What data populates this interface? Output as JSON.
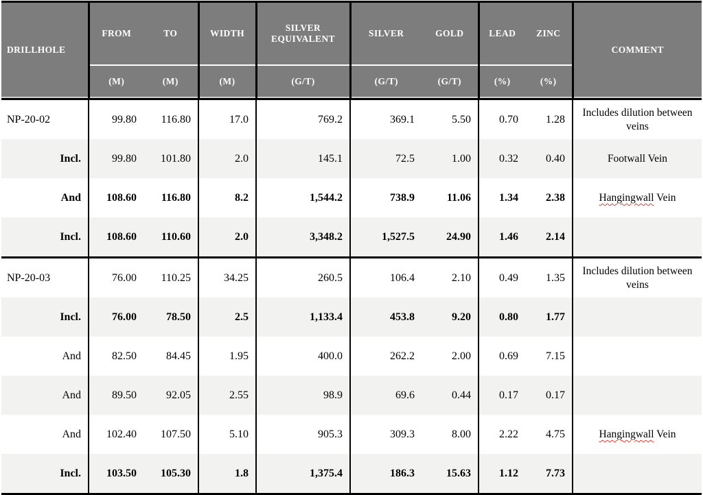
{
  "table": {
    "colors": {
      "header_bg": "#7d7d7d",
      "header_text": "#ffffff",
      "alt_row_bg": "#f2f2f1",
      "header_gap": "#cfcfcf",
      "border": "#000000",
      "spellcheck_squiggle": "#e03c2d"
    },
    "header": {
      "drillhole": "DRILLHOLE",
      "from": "FROM",
      "to": "TO",
      "width": "WIDTH",
      "silver_equivalent": "SILVER EQUIVALENT",
      "silver": "SILVER",
      "gold": "GOLD",
      "lead": "LEAD",
      "zinc": "ZINC",
      "comment": "COMMENT",
      "units": {
        "from": "(M)",
        "to": "(M)",
        "width": "(M)",
        "silver_equivalent": "(G/T)",
        "silver": "(G/T)",
        "gold": "(G/T)",
        "lead": "(%)",
        "zinc": "(%)"
      }
    },
    "rows": [
      {
        "label": "NP-20-02",
        "label_align": "left",
        "bold_label": false,
        "bold_values": false,
        "from": "99.80",
        "to": "116.80",
        "width": "17.0",
        "silver_equivalent": "769.2",
        "silver": "369.1",
        "gold": "5.50",
        "lead": "0.70",
        "zinc": "1.28",
        "comment": "Includes dilution between veins",
        "squiggle_word": "",
        "group_end": false
      },
      {
        "label": "Incl.",
        "label_align": "right",
        "bold_label": true,
        "bold_values": false,
        "from": "99.80",
        "to": "101.80",
        "width": "2.0",
        "silver_equivalent": "145.1",
        "silver": "72.5",
        "gold": "1.00",
        "lead": "0.32",
        "zinc": "0.40",
        "comment": "Footwall Vein",
        "squiggle_word": "",
        "group_end": false
      },
      {
        "label": "And",
        "label_align": "right",
        "bold_label": true,
        "bold_values": true,
        "from": "108.60",
        "to": "116.80",
        "width": "8.2",
        "silver_equivalent": "1,544.2",
        "silver": "738.9",
        "gold": "11.06",
        "lead": "1.34",
        "zinc": "2.38",
        "comment": "Hangingwall Vein",
        "squiggle_word": "Hangingwall",
        "group_end": false
      },
      {
        "label": "Incl.",
        "label_align": "right",
        "bold_label": true,
        "bold_values": true,
        "from": "108.60",
        "to": "110.60",
        "width": "2.0",
        "silver_equivalent": "3,348.2",
        "silver": "1,527.5",
        "gold": "24.90",
        "lead": "1.46",
        "zinc": "2.14",
        "comment": "",
        "squiggle_word": "",
        "group_end": true
      },
      {
        "label": "NP-20-03",
        "label_align": "left",
        "bold_label": false,
        "bold_values": false,
        "from": "76.00",
        "to": "110.25",
        "width": "34.25",
        "silver_equivalent": "260.5",
        "silver": "106.4",
        "gold": "2.10",
        "lead": "0.49",
        "zinc": "1.35",
        "comment": "Includes dilution between veins",
        "squiggle_word": "",
        "group_end": false
      },
      {
        "label": "Incl.",
        "label_align": "right",
        "bold_label": true,
        "bold_values": true,
        "from": "76.00",
        "to": "78.50",
        "width": "2.5",
        "silver_equivalent": "1,133.4",
        "silver": "453.8",
        "gold": "9.20",
        "lead": "0.80",
        "zinc": "1.77",
        "comment": "",
        "squiggle_word": "",
        "group_end": false
      },
      {
        "label": "And",
        "label_align": "right",
        "bold_label": false,
        "bold_values": false,
        "from": "82.50",
        "to": "84.45",
        "width": "1.95",
        "silver_equivalent": "400.0",
        "silver": "262.2",
        "gold": "2.00",
        "lead": "0.69",
        "zinc": "7.15",
        "comment": "",
        "squiggle_word": "",
        "group_end": false
      },
      {
        "label": "And",
        "label_align": "right",
        "bold_label": false,
        "bold_values": false,
        "from": "89.50",
        "to": "92.05",
        "width": "2.55",
        "silver_equivalent": "98.9",
        "silver": "69.6",
        "gold": "0.44",
        "lead": "0.17",
        "zinc": "0.17",
        "comment": "",
        "squiggle_word": "",
        "group_end": false
      },
      {
        "label": "And",
        "label_align": "right",
        "bold_label": false,
        "bold_values": false,
        "from": "102.40",
        "to": "107.50",
        "width": "5.10",
        "silver_equivalent": "905.3",
        "silver": "309.3",
        "gold": "8.00",
        "lead": "2.22",
        "zinc": "4.75",
        "comment": "Hangingwall Vein",
        "squiggle_word": "Hangingwall",
        "group_end": false
      },
      {
        "label": "Incl.",
        "label_align": "right",
        "bold_label": true,
        "bold_values": true,
        "from": "103.50",
        "to": "105.30",
        "width": "1.8",
        "silver_equivalent": "1,375.4",
        "silver": "186.3",
        "gold": "15.63",
        "lead": "1.12",
        "zinc": "7.73",
        "comment": "",
        "squiggle_word": "",
        "group_end": false
      }
    ]
  }
}
